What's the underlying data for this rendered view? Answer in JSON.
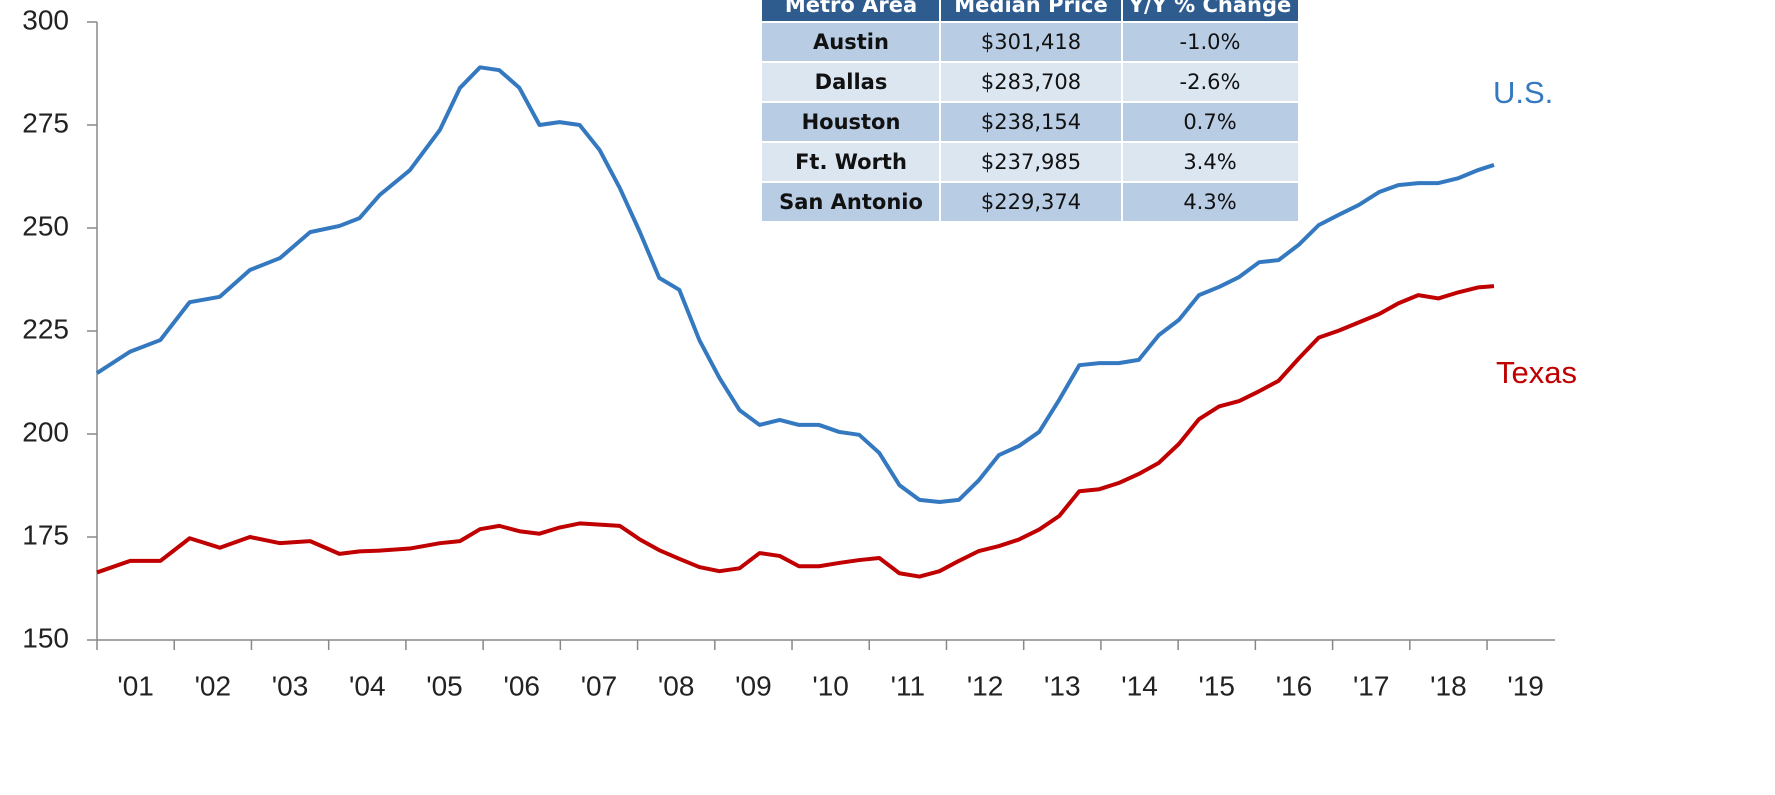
{
  "chart_data": {
    "type": "line",
    "xlim": [
      2001,
      2019.88
    ],
    "xticks": [
      {
        "value": 2001,
        "label": "'01"
      },
      {
        "value": 2002,
        "label": "'02"
      },
      {
        "value": 2003,
        "label": "'03"
      },
      {
        "value": 2004,
        "label": "'04"
      },
      {
        "value": 2005,
        "label": "'05"
      },
      {
        "value": 2006,
        "label": "'06"
      },
      {
        "value": 2007,
        "label": "'07"
      },
      {
        "value": 2008,
        "label": "'08"
      },
      {
        "value": 2009,
        "label": "'09"
      },
      {
        "value": 2010,
        "label": "'10"
      },
      {
        "value": 2011,
        "label": "'11"
      },
      {
        "value": 2012,
        "label": "'12"
      },
      {
        "value": 2013,
        "label": "'13"
      },
      {
        "value": 2014,
        "label": "'14"
      },
      {
        "value": 2015,
        "label": "'15"
      },
      {
        "value": 2016,
        "label": "'16"
      },
      {
        "value": 2017,
        "label": "'17"
      },
      {
        "value": 2018,
        "label": "'18"
      },
      {
        "value": 2019,
        "label": "'19"
      }
    ],
    "ylim": [
      150,
      300
    ],
    "yticks": [
      150,
      175,
      200,
      225,
      250,
      275,
      300
    ],
    "x": [
      2001.0,
      2001.43,
      2001.82,
      2002.2,
      2002.59,
      2002.98,
      2003.37,
      2003.76,
      2004.14,
      2004.4,
      2004.66,
      2005.05,
      2005.44,
      2005.7,
      2005.96,
      2006.21,
      2006.47,
      2006.73,
      2006.99,
      2007.25,
      2007.51,
      2007.77,
      2008.03,
      2008.28,
      2008.54,
      2008.8,
      2009.06,
      2009.32,
      2009.58,
      2009.84,
      2010.09,
      2010.35,
      2010.61,
      2010.87,
      2011.13,
      2011.39,
      2011.65,
      2011.91,
      2012.16,
      2012.42,
      2012.68,
      2012.94,
      2013.2,
      2013.46,
      2013.72,
      2013.98,
      2014.23,
      2014.49,
      2014.75,
      2015.01,
      2015.27,
      2015.53,
      2015.79,
      2016.05,
      2016.3,
      2016.56,
      2016.82,
      2017.08,
      2017.34,
      2017.6,
      2017.85,
      2018.11,
      2018.37,
      2018.63,
      2018.89,
      2019.09
    ],
    "series": [
      {
        "name": "U.S.",
        "color": "#3479c0",
        "values": [
          214.8,
          220,
          222.8,
          232,
          233.3,
          239.8,
          242.7,
          249,
          250.5,
          252.4,
          258,
          264,
          273.8,
          284,
          289,
          288.3,
          284,
          275,
          275.7,
          275,
          268.9,
          259.7,
          249,
          237.9,
          235,
          222.8,
          213.6,
          205.8,
          202.2,
          203.4,
          202.2,
          202.2,
          200.5,
          199.8,
          195.4,
          187.6,
          184,
          183.5,
          184,
          188.8,
          194.9,
          197.1,
          200.5,
          208.3,
          216.7,
          217.2,
          217.2,
          218,
          224,
          227.7,
          233.7,
          235.7,
          238.1,
          241.7,
          242.2,
          245.9,
          250.7,
          253.2,
          255.6,
          258.7,
          260.4,
          260.9,
          260.9,
          262.1,
          264.1,
          265.3
        ]
      },
      {
        "name": "Texas",
        "color": "#c00000",
        "values": [
          166.4,
          169.2,
          169.2,
          174.7,
          172.4,
          175,
          173.5,
          174,
          170.9,
          171.5,
          171.7,
          172.2,
          173.5,
          174,
          176.9,
          177.7,
          176.4,
          175.8,
          177.3,
          178.3,
          178,
          177.7,
          174.4,
          171.8,
          169.7,
          167.7,
          166.7,
          167.4,
          171.1,
          170.4,
          167.9,
          167.9,
          168.7,
          169.4,
          169.9,
          166.2,
          165.4,
          166.7,
          169.2,
          171.6,
          172.8,
          174.4,
          176.8,
          180.1,
          186.1,
          186.6,
          188.1,
          190.3,
          193,
          197.6,
          203.6,
          206.7,
          208,
          210.4,
          212.9,
          218.3,
          223.4,
          225.1,
          227.1,
          229.1,
          231.7,
          233.7,
          232.9,
          234.4,
          235.6,
          235.9
        ]
      }
    ]
  },
  "table": {
    "columns": [
      "Metro Area",
      "Median Price",
      "Y/Y % Change"
    ],
    "rows": [
      [
        "Austin",
        "$301,418",
        "-1.0%"
      ],
      [
        "Dallas",
        "$283,708",
        "-2.6%"
      ],
      [
        "Houston",
        "$238,154",
        "0.7%"
      ],
      [
        "Ft. Worth",
        "$237,985",
        "3.4%"
      ],
      [
        "San Antonio",
        "$229,374",
        "4.3%"
      ]
    ]
  }
}
